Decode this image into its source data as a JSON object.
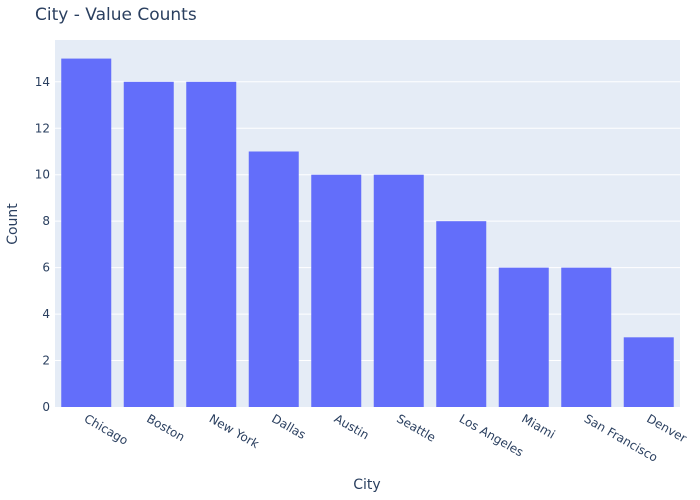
{
  "chart_data": {
    "type": "bar",
    "title": "City - Value Counts",
    "xlabel": "City",
    "ylabel": "Count",
    "categories": [
      "Chicago",
      "Boston",
      "New York",
      "Dallas",
      "Austin",
      "Seattle",
      "Los Angeles",
      "Miami",
      "San Francisco",
      "Denver"
    ],
    "values": [
      15,
      14,
      14,
      11,
      10,
      10,
      8,
      6,
      6,
      3
    ],
    "ylim": [
      0,
      15.8
    ],
    "yticks": [
      0,
      2,
      4,
      6,
      8,
      10,
      12,
      14
    ],
    "grid": true,
    "legend": "none",
    "colors": {
      "bar": "#636efa",
      "plot_bg": "#e5ecf6",
      "grid": "#ffffff",
      "text": "#2a3f5f"
    }
  }
}
